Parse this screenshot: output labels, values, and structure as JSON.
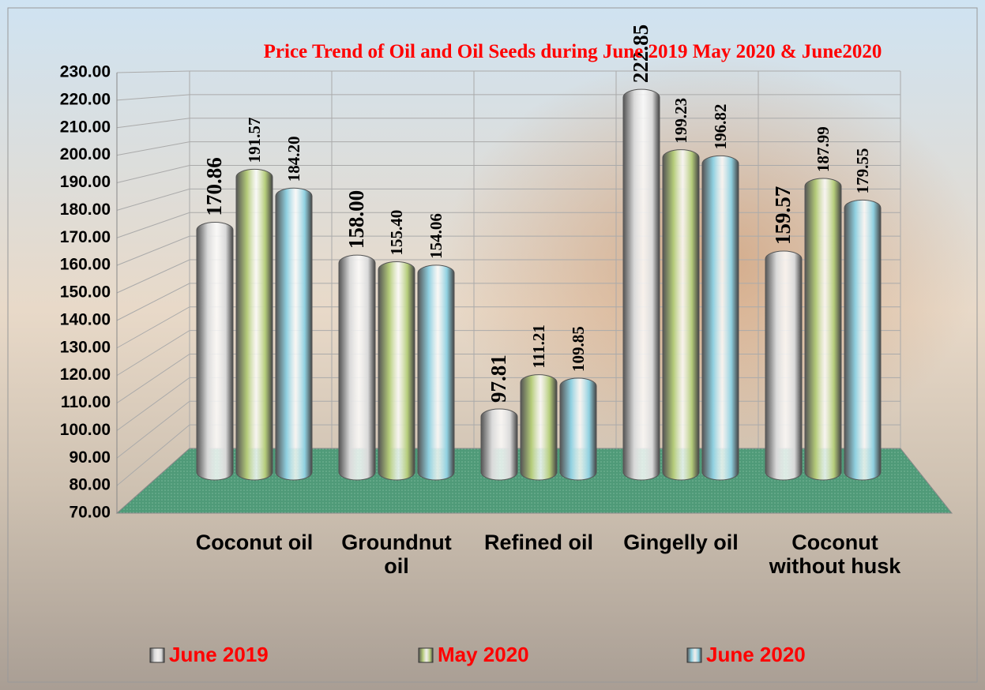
{
  "chart_data": {
    "type": "bar",
    "title": "Price Trend of Oil and Oil Seeds during  June 2019  May 2020 & June2020",
    "categories": [
      "Coconut oil",
      "Groundnut oil",
      "Refined oil",
      "Gingelly oil",
      "Coconut without husk"
    ],
    "series": [
      {
        "name": "June 2019",
        "color": "#d9d9d9",
        "values": [
          170.86,
          158.0,
          97.81,
          222.85,
          159.57
        ],
        "value_labels": [
          "170.86",
          "158.00",
          "97.81",
          "222.85",
          "159.57"
        ]
      },
      {
        "name": "May 2020",
        "color": "#b5cc7a",
        "values": [
          191.57,
          155.4,
          111.21,
          199.23,
          187.99
        ],
        "value_labels": [
          "191.57",
          "155.40",
          "111.21",
          "199.23",
          "187.99"
        ]
      },
      {
        "name": "June 2020",
        "color": "#8fd0e0",
        "values": [
          184.2,
          154.06,
          109.85,
          196.82,
          179.55
        ],
        "value_labels": [
          "184.20",
          "154.06",
          "109.85",
          "196.82",
          "179.55"
        ]
      }
    ],
    "ylim": [
      70,
      230
    ],
    "yticks": [
      {
        "value": 70,
        "label": "70.00"
      },
      {
        "value": 80,
        "label": "80.00"
      },
      {
        "value": 90,
        "label": "90.00"
      },
      {
        "value": 100,
        "label": "100.00"
      },
      {
        "value": 110,
        "label": "110.00"
      },
      {
        "value": 120,
        "label": "120.00"
      },
      {
        "value": 130,
        "label": "130.00"
      },
      {
        "value": 140,
        "label": "140.00"
      },
      {
        "value": 150,
        "label": "150.00"
      },
      {
        "value": 160,
        "label": "160.00"
      },
      {
        "value": 170,
        "label": "170.00"
      },
      {
        "value": 180,
        "label": "180.00"
      },
      {
        "value": 190,
        "label": "190.00"
      },
      {
        "value": 200,
        "label": "200.00"
      },
      {
        "value": 210,
        "label": "210.00"
      },
      {
        "value": 220,
        "label": "220.00"
      },
      {
        "value": 230,
        "label": "230.00"
      }
    ],
    "grid": true,
    "legend": "bottom"
  }
}
